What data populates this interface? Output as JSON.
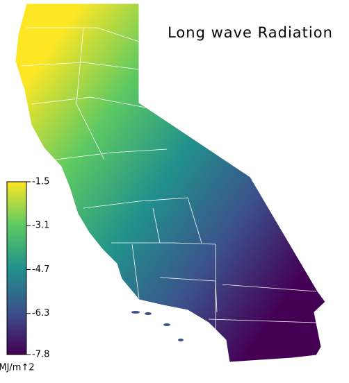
{
  "title": "Long wave Radiation",
  "legend": {
    "ticks": [
      -1.5,
      -3.1,
      -4.7,
      -6.3,
      -7.8
    ],
    "lim": [
      -7.8,
      -1.5
    ],
    "unit": "MJ/m↑2",
    "colormap": [
      "#440154",
      "#3b528b",
      "#21918c",
      "#5ec962",
      "#fde725"
    ]
  }
}
